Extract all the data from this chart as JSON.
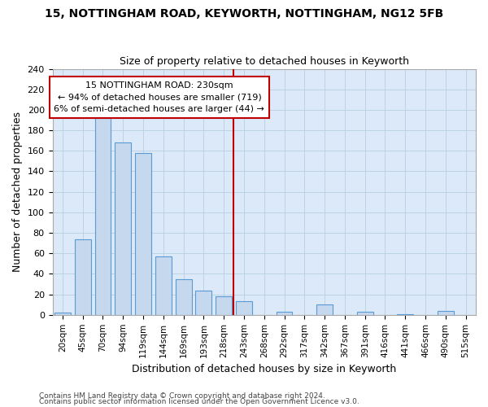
{
  "title": "15, NOTTINGHAM ROAD, KEYWORTH, NOTTINGHAM, NG12 5FB",
  "subtitle": "Size of property relative to detached houses in Keyworth",
  "xlabel": "Distribution of detached houses by size in Keyworth",
  "ylabel": "Number of detached properties",
  "categories": [
    "20sqm",
    "45sqm",
    "70sqm",
    "94sqm",
    "119sqm",
    "144sqm",
    "169sqm",
    "193sqm",
    "218sqm",
    "243sqm",
    "268sqm",
    "292sqm",
    "317sqm",
    "342sqm",
    "367sqm",
    "391sqm",
    "416sqm",
    "441sqm",
    "466sqm",
    "490sqm",
    "515sqm"
  ],
  "values": [
    2,
    74,
    197,
    168,
    158,
    57,
    35,
    24,
    18,
    13,
    0,
    3,
    0,
    10,
    0,
    3,
    0,
    1,
    0,
    4,
    0
  ],
  "bar_color": "#c5d8ed",
  "bar_edge_color": "#5b9bd5",
  "highlight_color": "#c00000",
  "red_line_x": 8.48,
  "annotation_line1": "15 NOTTINGHAM ROAD: 230sqm",
  "annotation_line2": "← 94% of detached houses are smaller (719)",
  "annotation_line3": "6% of semi-detached houses are larger (44) →",
  "annotation_box_color": "#ffffff",
  "annotation_box_edge": "#c00000",
  "ylim": [
    0,
    240
  ],
  "yticks": [
    0,
    20,
    40,
    60,
    80,
    100,
    120,
    140,
    160,
    180,
    200,
    220,
    240
  ],
  "footer1": "Contains HM Land Registry data © Crown copyright and database right 2024.",
  "footer2": "Contains public sector information licensed under the Open Government Licence v3.0.",
  "fig_bg_color": "#ffffff",
  "plot_bg_color": "#dce9f8"
}
